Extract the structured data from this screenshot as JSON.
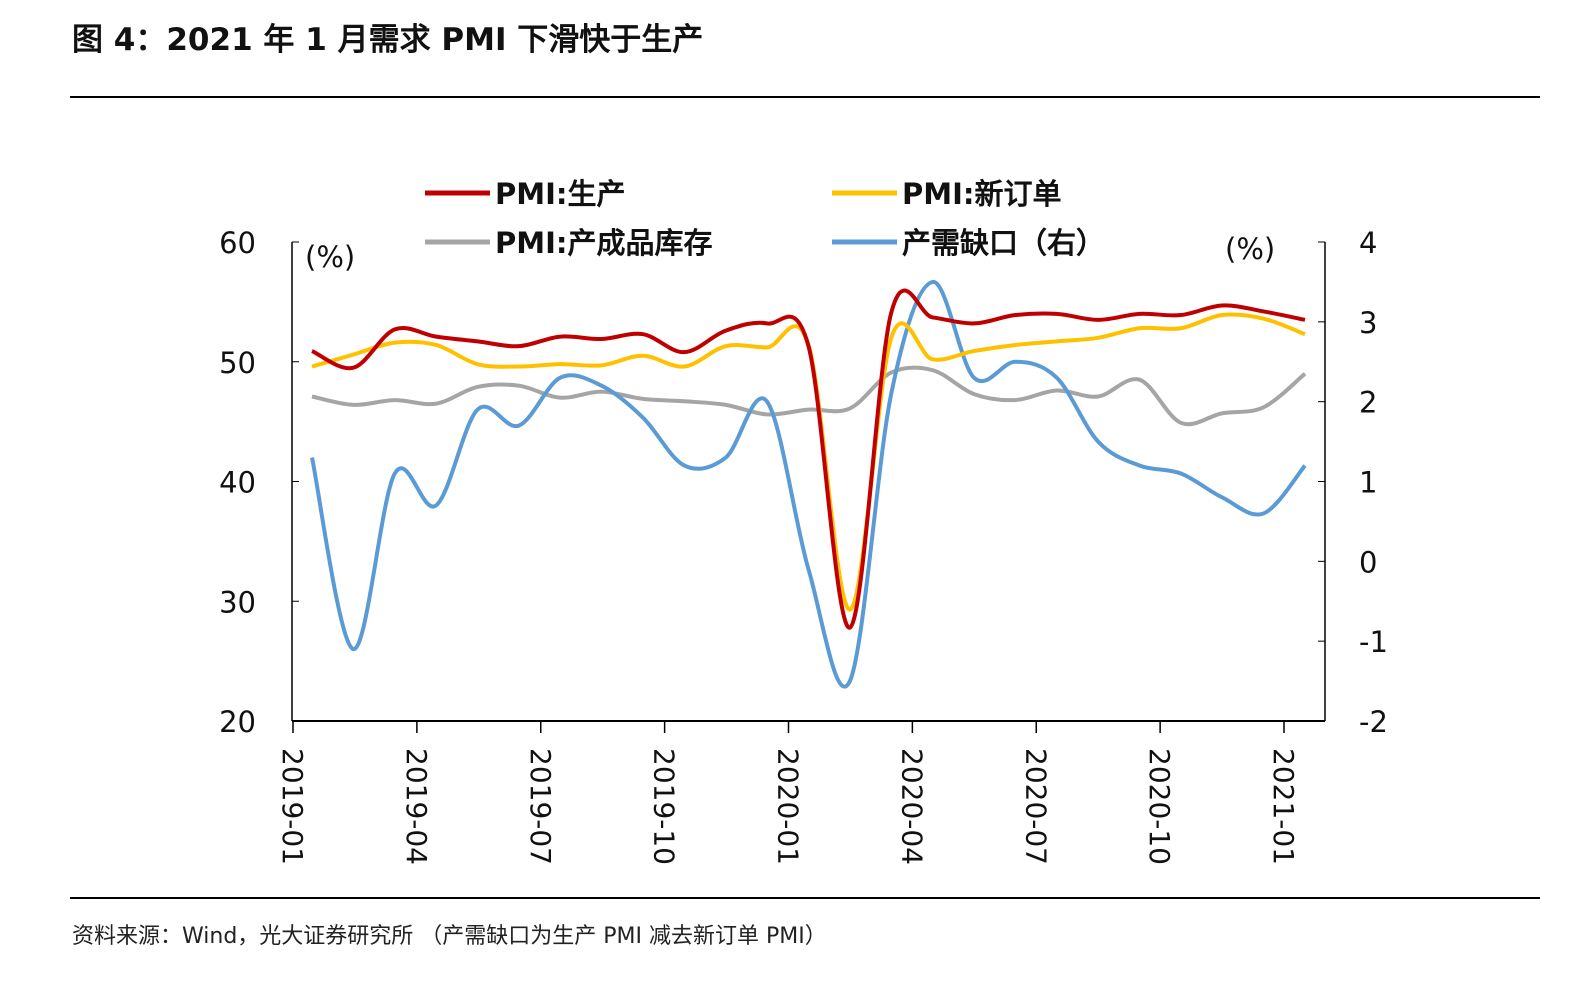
{
  "title": "图 4：2021 年 1 月需求 PMI 下滑快于生产",
  "source": "资料来源：Wind，光大证券研究所  （产需缺口为生产 PMI 减去新订单 PMI）",
  "chart_data": {
    "type": "line",
    "title": "",
    "left_unit": "(%)",
    "right_unit": "(%)",
    "left_ylim": [
      20,
      60
    ],
    "left_ticks": [
      "60",
      "50",
      "40",
      "30",
      "20"
    ],
    "right_ylim": [
      -2,
      4
    ],
    "right_ticks": [
      "4",
      "3",
      "2",
      "1",
      "0",
      "-1",
      "-2"
    ],
    "x_ticks": [
      "2019-01",
      "2019-04",
      "2019-07",
      "2019-10",
      "2020-01",
      "2020-04",
      "2020-07",
      "2020-10",
      "2021-01"
    ],
    "x": [
      "2019-01",
      "2019-02",
      "2019-03",
      "2019-04",
      "2019-05",
      "2019-06",
      "2019-07",
      "2019-08",
      "2019-09",
      "2019-10",
      "2019-11",
      "2019-12",
      "2020-01",
      "2020-02",
      "2020-03",
      "2020-04",
      "2020-05",
      "2020-06",
      "2020-07",
      "2020-08",
      "2020-09",
      "2020-10",
      "2020-11",
      "2020-12",
      "2021-01"
    ],
    "series": [
      {
        "name": "PMI:生产",
        "axis": "left",
        "color": "#c00000",
        "values": [
          50.9,
          49.5,
          52.7,
          52.1,
          51.7,
          51.3,
          52.1,
          51.9,
          52.3,
          50.8,
          52.6,
          53.2,
          51.3,
          27.8,
          54.1,
          53.7,
          53.2,
          53.9,
          54.0,
          53.5,
          54.0,
          53.9,
          54.7,
          54.2,
          53.5
        ]
      },
      {
        "name": "PMI:新订单",
        "axis": "left",
        "color": "#ffc000",
        "values": [
          49.6,
          50.6,
          51.6,
          51.4,
          49.8,
          49.6,
          49.8,
          49.7,
          50.5,
          49.6,
          51.3,
          51.2,
          51.4,
          29.3,
          52.0,
          50.2,
          50.9,
          51.4,
          51.7,
          52.0,
          52.8,
          52.8,
          53.9,
          53.6,
          52.3
        ]
      },
      {
        "name": "PMI:产成品库存",
        "axis": "left",
        "color": "#a5a5a5",
        "values": [
          47.1,
          46.4,
          46.8,
          46.5,
          47.9,
          48.0,
          47.0,
          47.5,
          46.9,
          46.7,
          46.4,
          45.6,
          46.0,
          46.1,
          49.1,
          49.3,
          47.3,
          46.8,
          47.6,
          47.1,
          48.5,
          44.9,
          45.7,
          46.2,
          49.0
        ]
      },
      {
        "name": "产需缺口（右）",
        "axis": "right",
        "color": "#5b9bd5",
        "values": [
          1.3,
          -1.1,
          1.1,
          0.7,
          1.9,
          1.7,
          2.3,
          2.2,
          1.8,
          1.2,
          1.3,
          2.0,
          -0.1,
          -1.5,
          2.1,
          3.5,
          2.3,
          2.5,
          2.3,
          1.5,
          1.2,
          1.1,
          0.8,
          0.6,
          1.2
        ]
      }
    ],
    "legend_placement": "top"
  }
}
